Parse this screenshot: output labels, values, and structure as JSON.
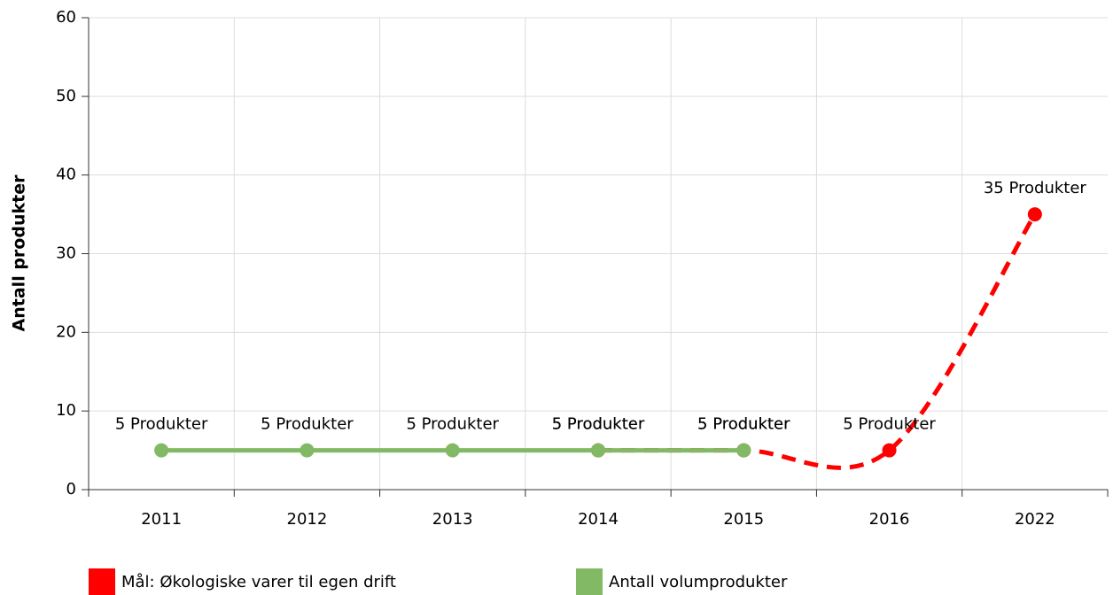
{
  "chart_data": {
    "type": "line",
    "y_label": "Antall produkter",
    "categories": [
      "2011",
      "2012",
      "2013",
      "2014",
      "2015",
      "2016",
      "2022"
    ],
    "series": [
      {
        "name": "Mål: Økologiske varer til egen drift",
        "color": "#ff0000",
        "dashed": true,
        "smooth": true,
        "values": [
          null,
          null,
          null,
          5,
          5,
          5,
          35
        ],
        "value_labels": [
          null,
          null,
          null,
          "5 Produkter",
          "5 Produkter",
          "5 Produkter",
          "35 Produkter"
        ]
      },
      {
        "name": "Antall volumprodukter",
        "color": "#82b964",
        "dashed": false,
        "smooth": false,
        "values": [
          5,
          5,
          5,
          5,
          5,
          null,
          null
        ],
        "value_labels": [
          "5 Produkter",
          "5 Produkter",
          "5 Produkter",
          "5 Produkter",
          "5 Produkter",
          null,
          null
        ]
      }
    ],
    "ylim": [
      0,
      60
    ],
    "yticks": [
      0,
      10,
      20,
      30,
      40,
      50,
      60
    ],
    "grid": true,
    "legend": "bottom"
  }
}
